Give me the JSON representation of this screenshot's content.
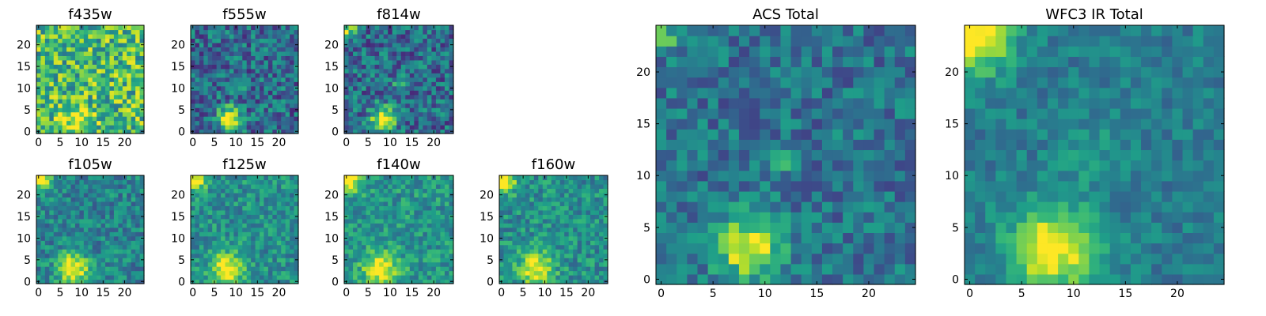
{
  "figure": {
    "colormap": "viridis"
  },
  "chart_data": [
    {
      "type": "heatmap",
      "title": "f435w",
      "grid": [
        25,
        25
      ],
      "xlim": [
        -0.5,
        24.5
      ],
      "ylim": [
        -0.5,
        24.5
      ],
      "xticks": [
        0,
        5,
        10,
        15,
        20
      ],
      "yticks": [
        0,
        5,
        10,
        15,
        20
      ],
      "features": [
        {
          "kind": "bright_source",
          "x": 9,
          "y": 3,
          "amplitude": 0.35,
          "spread": 2.3
        }
      ],
      "background": 0.68,
      "noise": 0.3
    },
    {
      "type": "heatmap",
      "title": "f555w",
      "grid": [
        25,
        25
      ],
      "xlim": [
        -0.5,
        24.5
      ],
      "ylim": [
        -0.5,
        24.5
      ],
      "xticks": [
        0,
        5,
        10,
        15,
        20
      ],
      "yticks": [
        0,
        5,
        10,
        15,
        20
      ],
      "features": [
        {
          "kind": "bright_source",
          "x": 8.5,
          "y": 3,
          "amplitude": 0.75,
          "spread": 1.9
        },
        {
          "kind": "bright_source",
          "x": 12,
          "y": 11.5,
          "amplitude": 0.45,
          "spread": 0.8
        }
      ],
      "background": 0.35,
      "noise": 0.24
    },
    {
      "type": "heatmap",
      "title": "f814w",
      "grid": [
        25,
        25
      ],
      "xlim": [
        -0.5,
        24.5
      ],
      "ylim": [
        -0.5,
        24.5
      ],
      "xticks": [
        0,
        5,
        10,
        15,
        20
      ],
      "yticks": [
        0,
        5,
        10,
        15,
        20
      ],
      "features": [
        {
          "kind": "bright_source",
          "x": 8.5,
          "y": 3,
          "amplitude": 0.7,
          "spread": 2.0
        },
        {
          "kind": "bright_source",
          "x": 12,
          "y": 11.5,
          "amplitude": 0.4,
          "spread": 0.8
        },
        {
          "kind": "bright_source",
          "x": 0.5,
          "y": 23.5,
          "amplitude": 0.5,
          "spread": 1.4
        }
      ],
      "background": 0.35,
      "noise": 0.24
    },
    {
      "type": "heatmap",
      "title": "f105w",
      "grid": [
        25,
        25
      ],
      "xlim": [
        -0.5,
        24.5
      ],
      "ylim": [
        -0.5,
        24.5
      ],
      "xticks": [
        0,
        5,
        10,
        15,
        20
      ],
      "yticks": [
        0,
        5,
        10,
        15,
        20
      ],
      "features": [
        {
          "kind": "bright_source",
          "x": 8,
          "y": 3,
          "amplitude": 0.6,
          "spread": 2.6
        },
        {
          "kind": "bright_source",
          "x": 0.5,
          "y": 23.5,
          "amplitude": 0.55,
          "spread": 1.8
        }
      ],
      "background": 0.45,
      "noise": 0.18
    },
    {
      "type": "heatmap",
      "title": "f125w",
      "grid": [
        25,
        25
      ],
      "xlim": [
        -0.5,
        24.5
      ],
      "ylim": [
        -0.5,
        24.5
      ],
      "xticks": [
        0,
        5,
        10,
        15,
        20
      ],
      "yticks": [
        0,
        5,
        10,
        15,
        20
      ],
      "features": [
        {
          "kind": "bright_source",
          "x": 8,
          "y": 3,
          "amplitude": 0.55,
          "spread": 2.7
        },
        {
          "kind": "bright_source",
          "x": 0.5,
          "y": 23.5,
          "amplitude": 0.55,
          "spread": 1.8
        }
      ],
      "background": 0.5,
      "noise": 0.18
    },
    {
      "type": "heatmap",
      "title": "f140w",
      "grid": [
        25,
        25
      ],
      "xlim": [
        -0.5,
        24.5
      ],
      "ylim": [
        -0.5,
        24.5
      ],
      "xticks": [
        0,
        5,
        10,
        15,
        20
      ],
      "yticks": [
        0,
        5,
        10,
        15,
        20
      ],
      "features": [
        {
          "kind": "bright_source",
          "x": 8,
          "y": 3,
          "amplitude": 0.5,
          "spread": 2.8
        },
        {
          "kind": "bright_source",
          "x": 0.5,
          "y": 23.5,
          "amplitude": 0.55,
          "spread": 2.0
        }
      ],
      "background": 0.52,
      "noise": 0.18
    },
    {
      "type": "heatmap",
      "title": "f160w",
      "grid": [
        25,
        25
      ],
      "xlim": [
        -0.5,
        24.5
      ],
      "ylim": [
        -0.5,
        24.5
      ],
      "xticks": [
        0,
        5,
        10,
        15,
        20
      ],
      "yticks": [
        0,
        5,
        10,
        15,
        20
      ],
      "features": [
        {
          "kind": "bright_source",
          "x": 8,
          "y": 3,
          "amplitude": 0.5,
          "spread": 2.8
        },
        {
          "kind": "bright_source",
          "x": 0.5,
          "y": 23.5,
          "amplitude": 0.55,
          "spread": 2.0
        }
      ],
      "background": 0.5,
      "noise": 0.18
    },
    {
      "type": "heatmap",
      "title": "ACS Total",
      "grid": [
        25,
        25
      ],
      "xlim": [
        -0.5,
        24.5
      ],
      "ylim": [
        -0.5,
        24.5
      ],
      "xticks": [
        0,
        5,
        10,
        15,
        20
      ],
      "yticks": [
        0,
        5,
        10,
        15,
        20
      ],
      "features": [
        {
          "kind": "bright_source",
          "x": 8.5,
          "y": 3,
          "amplitude": 0.62,
          "spread": 2.1
        },
        {
          "kind": "bright_source",
          "x": 12.5,
          "y": 11.5,
          "amplitude": 0.38,
          "spread": 0.9
        },
        {
          "kind": "bright_source",
          "x": 0.5,
          "y": 23.5,
          "amplitude": 0.3,
          "spread": 1.2
        }
      ],
      "background": 0.38,
      "noise": 0.18
    },
    {
      "type": "heatmap",
      "title": "WFC3 IR Total",
      "grid": [
        25,
        25
      ],
      "xlim": [
        -0.5,
        24.5
      ],
      "ylim": [
        -0.5,
        24.5
      ],
      "xticks": [
        0,
        5,
        10,
        15,
        20
      ],
      "yticks": [
        0,
        5,
        10,
        15,
        20
      ],
      "features": [
        {
          "kind": "bright_source",
          "x": 8,
          "y": 3,
          "amplitude": 0.6,
          "spread": 3.0
        },
        {
          "kind": "bright_source",
          "x": 0.5,
          "y": 23.5,
          "amplitude": 0.65,
          "spread": 2.4
        },
        {
          "kind": "bright_source",
          "x": 12,
          "y": 12.5,
          "amplitude": 0.12,
          "spread": 2.0
        }
      ],
      "background": 0.42,
      "noise": 0.12
    }
  ]
}
